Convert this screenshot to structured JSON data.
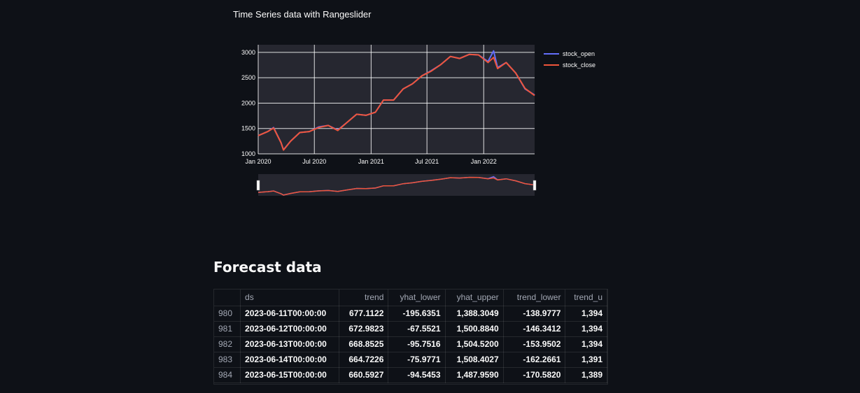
{
  "chart_data": {
    "type": "line",
    "title": "Time Series data with Rangeslider",
    "x_tick_labels": [
      "Jan 2020",
      "Jul 2020",
      "Jan 2021",
      "Jul 2021",
      "Jan 2022"
    ],
    "y_tick_labels": [
      "1000",
      "1500",
      "2000",
      "2500",
      "3000"
    ],
    "xlim": [
      "2020-01-01",
      "2022-06-15"
    ],
    "ylim": [
      1000,
      3150
    ],
    "grid": true,
    "legend_position": "right",
    "rangeslider": true,
    "x": [
      "2020-01-01",
      "2020-02-01",
      "2020-02-20",
      "2020-03-15",
      "2020-03-23",
      "2020-04-15",
      "2020-05-15",
      "2020-06-15",
      "2020-07-15",
      "2020-08-15",
      "2020-09-15",
      "2020-10-15",
      "2020-11-15",
      "2020-12-15",
      "2021-01-15",
      "2021-02-10",
      "2021-03-15",
      "2021-04-15",
      "2021-05-15",
      "2021-06-15",
      "2021-07-15",
      "2021-08-15",
      "2021-09-15",
      "2021-10-15",
      "2021-11-15",
      "2021-12-15",
      "2022-01-15",
      "2022-02-02",
      "2022-02-15",
      "2022-03-15",
      "2022-04-15",
      "2022-05-15",
      "2022-06-15"
    ],
    "series": [
      {
        "name": "stock_open",
        "color": "#636efa",
        "values": [
          1360,
          1440,
          1520,
          1220,
          1080,
          1250,
          1420,
          1440,
          1530,
          1560,
          1470,
          1620,
          1780,
          1760,
          1820,
          2060,
          2060,
          2280,
          2380,
          2540,
          2640,
          2760,
          2920,
          2880,
          2960,
          2950,
          2820,
          3030,
          2700,
          2800,
          2590,
          2280,
          2160
        ]
      },
      {
        "name": "stock_close",
        "color": "#ef553b",
        "values": [
          1360,
          1440,
          1510,
          1220,
          1075,
          1250,
          1420,
          1440,
          1520,
          1560,
          1460,
          1620,
          1780,
          1760,
          1820,
          2060,
          2060,
          2280,
          2380,
          2540,
          2630,
          2760,
          2920,
          2880,
          2960,
          2950,
          2800,
          2900,
          2680,
          2800,
          2590,
          2290,
          2150
        ]
      }
    ]
  },
  "table": {
    "title": "Forecast data",
    "columns": [
      "",
      "ds",
      "trend",
      "yhat_lower",
      "yhat_upper",
      "trend_lower",
      "trend_u"
    ],
    "rows": [
      [
        "980",
        "2023-06-11T00:00:00",
        "677.1122",
        "-195.6351",
        "1,388.3049",
        "-138.9777",
        "1,394"
      ],
      [
        "981",
        "2023-06-12T00:00:00",
        "672.9823",
        "-67.5521",
        "1,500.8840",
        "-146.3412",
        "1,394"
      ],
      [
        "982",
        "2023-06-13T00:00:00",
        "668.8525",
        "-95.7516",
        "1,504.5200",
        "-153.9502",
        "1,394"
      ],
      [
        "983",
        "2023-06-14T00:00:00",
        "664.7226",
        "-75.9771",
        "1,508.4027",
        "-162.2661",
        "1,391"
      ],
      [
        "984",
        "2023-06-15T00:00:00",
        "660.5927",
        "-94.5453",
        "1,487.9590",
        "-170.5820",
        "1,389"
      ]
    ]
  }
}
